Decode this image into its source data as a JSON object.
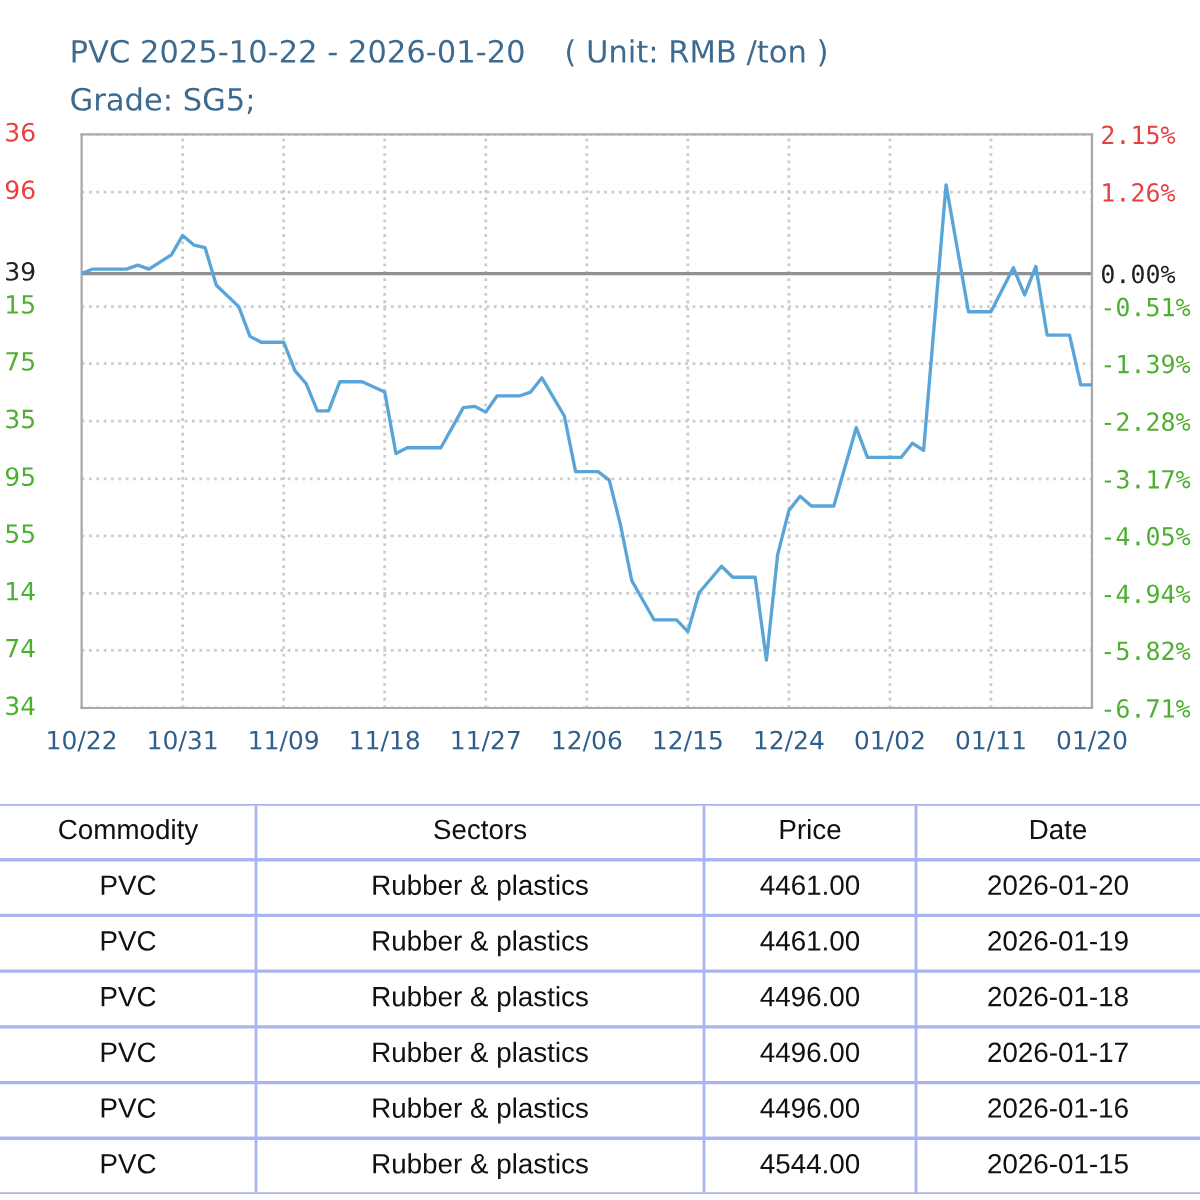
{
  "chart_data": [
    {
      "type": "line",
      "title": "PVC 2025-10-22 - 2026-01-20    ( Unit: RMB /ton )",
      "subtitle": "Grade: SG5;",
      "x": [
        "2025-10-22",
        "2025-10-23",
        "2025-10-26",
        "2025-10-27",
        "2025-10-28",
        "2025-10-30",
        "2025-10-31",
        "2025-11-01",
        "2025-11-02",
        "2025-11-03",
        "2025-11-05",
        "2025-11-06",
        "2025-11-07",
        "2025-11-09",
        "2025-11-10",
        "2025-11-11",
        "2025-11-12",
        "2025-11-13",
        "2025-11-14",
        "2025-11-16",
        "2025-11-18",
        "2025-11-19",
        "2025-11-20",
        "2025-11-23",
        "2025-11-25",
        "2025-11-26",
        "2025-11-27",
        "2025-11-28",
        "2025-11-30",
        "2025-12-01",
        "2025-12-02",
        "2025-12-04",
        "2025-12-05",
        "2025-12-07",
        "2025-12-08",
        "2025-12-09",
        "2025-12-10",
        "2025-12-12",
        "2025-12-14",
        "2025-12-15",
        "2025-12-16",
        "2025-12-18",
        "2025-12-19",
        "2025-12-21",
        "2025-12-22",
        "2025-12-23",
        "2025-12-24",
        "2025-12-25",
        "2025-12-26",
        "2025-12-28",
        "2025-12-30",
        "2025-12-31",
        "2026-01-03",
        "2026-01-04",
        "2026-01-05",
        "2026-01-07",
        "2026-01-09",
        "2026-01-11",
        "2026-01-13",
        "2026-01-14",
        "2026-01-15",
        "2026-01-16",
        "2026-01-18",
        "2026-01-19",
        "2026-01-20"
      ],
      "series": [
        {
          "color": "#5aa5d8",
          "values": [
            0,
            0.07,
            0.07,
            0.13,
            0.07,
            0.29,
            0.59,
            0.44,
            0.4,
            -0.18,
            -0.51,
            -0.97,
            -1.06,
            -1.06,
            -1.5,
            -1.7,
            -2.12,
            -2.12,
            -1.67,
            -1.67,
            -1.83,
            -2.78,
            -2.69,
            -2.69,
            -2.07,
            -2.05,
            -2.14,
            -1.89,
            -1.89,
            -1.83,
            -1.61,
            -2.2,
            -3.06,
            -3.06,
            -3.19,
            -3.88,
            -4.74,
            -5.35,
            -5.35,
            -5.53,
            -4.93,
            -4.52,
            -4.69,
            -4.69,
            -5.97,
            -4.34,
            -3.66,
            -3.44,
            -3.59,
            -3.59,
            -2.38,
            -2.84,
            -2.84,
            -2.62,
            -2.73,
            1.37,
            -0.59,
            -0.59,
            0.09,
            -0.33,
            0.11,
            -0.95,
            -0.95,
            -1.72,
            -1.72
          ]
        }
      ],
      "xlim": [
        "2025-10-22",
        "2026-01-20"
      ],
      "xticks": [
        {
          "value": "2025-10-22",
          "label": "10/22"
        },
        {
          "value": "2025-10-31",
          "label": "10/31"
        },
        {
          "value": "2025-11-09",
          "label": "11/09"
        },
        {
          "value": "2025-11-18",
          "label": "11/18"
        },
        {
          "value": "2025-11-27",
          "label": "11/27"
        },
        {
          "value": "2025-12-06",
          "label": "12/06"
        },
        {
          "value": "2025-12-15",
          "label": "12/15"
        },
        {
          "value": "2025-12-24",
          "label": "12/24"
        },
        {
          "value": "2026-01-02",
          "label": "01/02"
        },
        {
          "value": "2026-01-11",
          "label": "01/11"
        },
        {
          "value": "2026-01-20",
          "label": "01/20"
        }
      ],
      "annotations": [
        "36",
        "96",
        "39",
        "15",
        "75",
        "35",
        "95",
        "55",
        "14",
        "74",
        "34"
      ],
      "ylim": [
        -6.71,
        2.15
      ],
      "yticks": [
        {
          "value": 2.15,
          "label": "2.15%"
        },
        {
          "value": 1.26,
          "label": "1.26%"
        },
        {
          "value": 0,
          "label": "0.00%"
        },
        {
          "value": -0.51,
          "label": "-0.51%"
        },
        {
          "value": -1.39,
          "label": "-1.39%"
        },
        {
          "value": -2.28,
          "label": "-2.28%"
        },
        {
          "value": -3.17,
          "label": "-3.17%"
        },
        {
          "value": -4.05,
          "label": "-4.05%"
        },
        {
          "value": -4.94,
          "label": "-4.94%"
        },
        {
          "value": -5.82,
          "label": "-5.82%"
        },
        {
          "value": -6.71,
          "label": "-6.71%"
        }
      ],
      "ref_lines": [
        {
          "axis": "y",
          "value": 0,
          "color": "#909090",
          "line_style": "solid"
        }
      ],
      "grid": true,
      "legend": false,
      "marker": "none",
      "line_style": "solid"
    },
    {
      "type": "other",
      "categories": [
        "Commodity",
        "Sectors",
        "Price",
        "Date"
      ],
      "annotations": [
        "PVC",
        "Rubber & plastics",
        "4461.00",
        "2026-01-20",
        "PVC",
        "Rubber & plastics",
        "4461.00",
        "2026-01-19",
        "PVC",
        "Rubber & plastics",
        "4496.00",
        "2026-01-18",
        "PVC",
        "Rubber & plastics",
        "4496.00",
        "2026-01-17",
        "PVC",
        "Rubber & plastics",
        "4496.00",
        "2026-01-16",
        "PVC",
        "Rubber & plastics",
        "4544.00",
        "2026-01-15"
      ]
    }
  ]
}
